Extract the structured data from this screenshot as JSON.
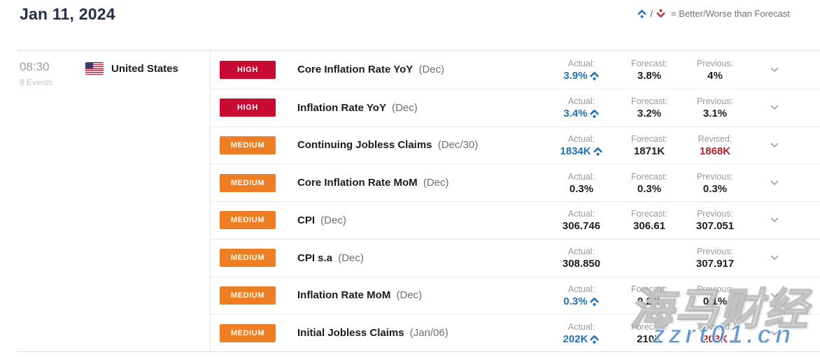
{
  "header": {
    "title": "Jan 11, 2024",
    "legend": {
      "separator": "/",
      "text": "= Better/Worse than Forecast"
    }
  },
  "group": {
    "time": "08:30",
    "events_count": "8 Events",
    "country": "United States"
  },
  "events": [
    {
      "impact": "HIGH",
      "impact_class": "high",
      "name": "Core Inflation Rate YoY",
      "period": "(Dec)",
      "actual_label": "Actual:",
      "actual": "3.9%",
      "actual_class": "blue",
      "actual_direction": "up",
      "forecast_label": "Forecast:",
      "forecast": "3.8%",
      "third_label": "Previous:",
      "third": "4%",
      "third_class": "dark"
    },
    {
      "impact": "HIGH",
      "impact_class": "high",
      "name": "Inflation Rate YoY",
      "period": "(Dec)",
      "actual_label": "Actual:",
      "actual": "3.4%",
      "actual_class": "blue",
      "actual_direction": "up",
      "forecast_label": "Forecast:",
      "forecast": "3.2%",
      "third_label": "Previous:",
      "third": "3.1%",
      "third_class": "dark"
    },
    {
      "impact": "MEDIUM",
      "impact_class": "medium",
      "name": "Continuing Jobless Claims",
      "period": "(Dec/30)",
      "actual_label": "Actual:",
      "actual": "1834K",
      "actual_class": "blue",
      "actual_direction": "up",
      "forecast_label": "Forecast:",
      "forecast": "1871K",
      "third_label": "Revised:",
      "third": "1868K",
      "third_class": "red"
    },
    {
      "impact": "MEDIUM",
      "impact_class": "medium",
      "name": "Core Inflation Rate MoM",
      "period": "(Dec)",
      "actual_label": "Actual:",
      "actual": "0.3%",
      "actual_class": "dark",
      "forecast_label": "Forecast:",
      "forecast": "0.3%",
      "third_label": "Previous:",
      "third": "0.3%",
      "third_class": "dark"
    },
    {
      "impact": "MEDIUM",
      "impact_class": "medium",
      "name": "CPI",
      "period": "(Dec)",
      "actual_label": "Actual:",
      "actual": "306.746",
      "actual_class": "dark",
      "forecast_label": "Forecast:",
      "forecast": "306.61",
      "third_label": "Previous:",
      "third": "307.051",
      "third_class": "dark"
    },
    {
      "impact": "MEDIUM",
      "impact_class": "medium",
      "name": "CPI s.a",
      "period": "(Dec)",
      "actual_label": "Actual:",
      "actual": "308.850",
      "actual_class": "dark",
      "forecast_label": "",
      "forecast": "",
      "third_label": "Previous:",
      "third": "307.917",
      "third_class": "dark"
    },
    {
      "impact": "MEDIUM",
      "impact_class": "medium",
      "name": "Inflation Rate MoM",
      "period": "(Dec)",
      "actual_label": "Actual:",
      "actual": "0.3%",
      "actual_class": "blue",
      "actual_direction": "up",
      "forecast_label": "Forecast:",
      "forecast": "0.2%",
      "third_label": "Previous:",
      "third": "0.1%",
      "third_class": "dark"
    },
    {
      "impact": "MEDIUM",
      "impact_class": "medium",
      "name": "Initial Jobless Claims",
      "period": "(Jan/06)",
      "actual_label": "Actual:",
      "actual": "202K",
      "actual_class": "blue",
      "actual_direction": "up",
      "forecast_label": "Forecast:",
      "forecast": "210K",
      "third_label": "Revised:",
      "third": "203K",
      "third_class": "red"
    }
  ],
  "watermark": {
    "line1": "海马财经",
    "line2": "zzrt01.cn"
  },
  "icons": {
    "better": "caret-up-with-dot",
    "worse": "caret-down-with-dot",
    "expand": "chevron-down",
    "country_flag": "us-flag"
  },
  "colors": {
    "high_impact": "#c90a32",
    "medium_impact": "#ee7e23",
    "better_than_forecast_blue": "#2171b5",
    "worse_than_forecast_red": "#b02a37",
    "revised_value_red": "#b01e28",
    "title_navy": "#24304a"
  }
}
